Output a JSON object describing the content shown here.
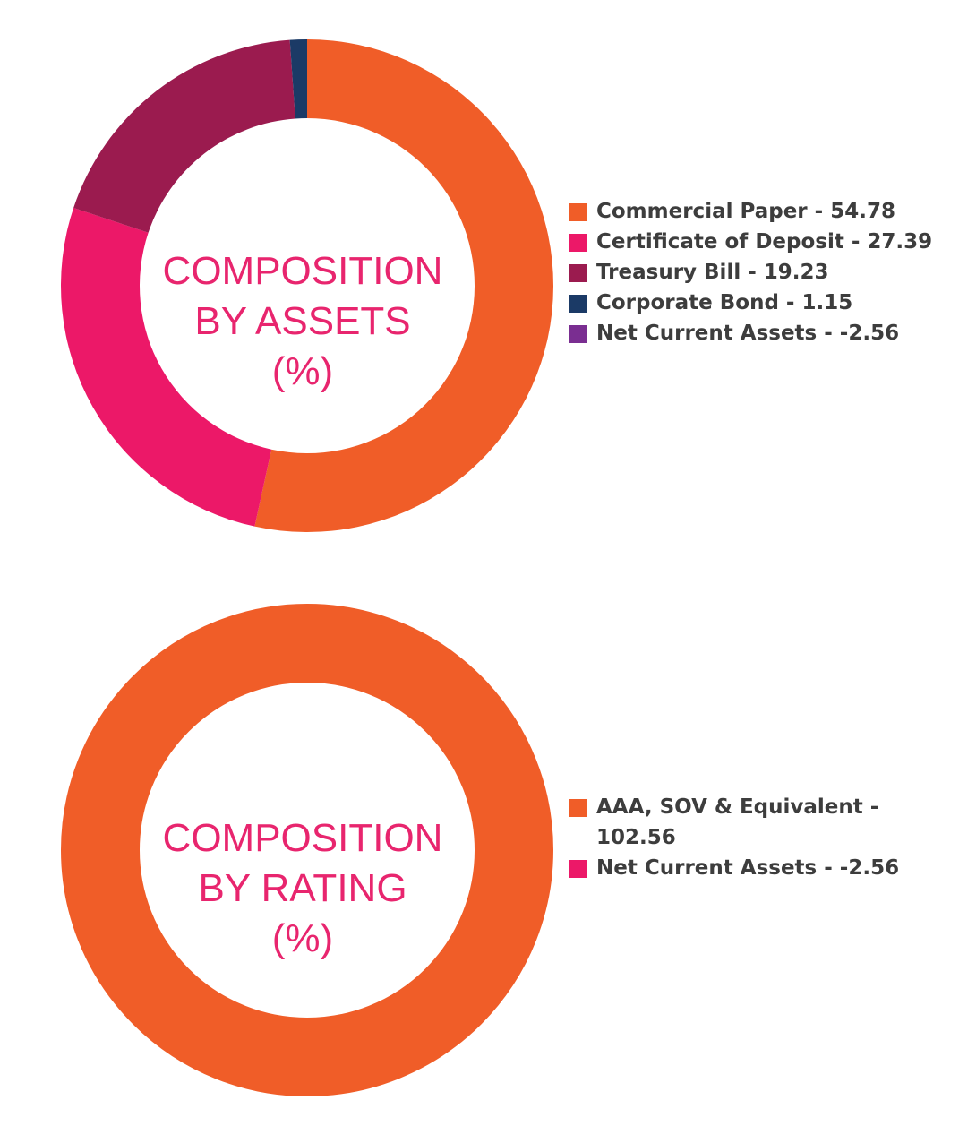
{
  "chart_data": [
    {
      "type": "pie",
      "style": "donut",
      "title_lines": [
        "COMPOSITION",
        "BY ASSETS",
        "(%)"
      ],
      "categories": [
        "Commercial Paper",
        "Certificate of Deposit",
        "Treasury Bill",
        "Corporate Bond",
        "Net Current Assets"
      ],
      "values": [
        54.78,
        27.39,
        19.23,
        1.15,
        -2.56
      ],
      "colors": [
        "#f05d28",
        "#ec1868",
        "#9b1b4f",
        "#1b3a66",
        "#7a2e91"
      ],
      "legend_labels": [
        "Commercial Paper - 54.78",
        "Certificate of Deposit - 27.39",
        "Treasury Bill - 19.23",
        "Corporate Bond - 1.15",
        "Net Current Assets - -2.56"
      ],
      "legend_position": "right"
    },
    {
      "type": "pie",
      "style": "donut",
      "title_lines": [
        "COMPOSITION",
        "BY RATING",
        "(%)"
      ],
      "categories": [
        "AAA, SOV & Equivalent",
        "Net Current Assets"
      ],
      "values": [
        102.56,
        -2.56
      ],
      "colors": [
        "#f05d28",
        "#ec1868"
      ],
      "legend_labels": [
        "AAA, SOV & Equivalent - 102.56",
        "Net Current Assets - -2.56"
      ],
      "legend_position": "right"
    }
  ]
}
